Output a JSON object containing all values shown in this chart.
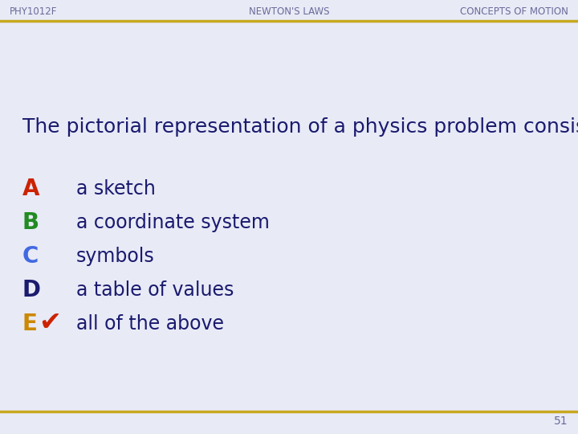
{
  "background_color": "#e8eaf6",
  "header_left": "PHY1012F",
  "header_center": "NEWTON'S LAWS",
  "header_right": "CONCEPTS OF MOTION",
  "header_color": "#6b6b9a",
  "header_bar_color": "#c8a820",
  "footer_bar_color": "#c8a820",
  "footer_number": "51",
  "question": "The pictorial representation of a physics problem consists of",
  "question_color": "#1a1a6e",
  "options": [
    {
      "letter": "A",
      "text": "a sketch",
      "letter_color": "#cc2200"
    },
    {
      "letter": "B",
      "text": "a coordinate system",
      "letter_color": "#228B22"
    },
    {
      "letter": "C",
      "text": "symbols",
      "letter_color": "#4169E1"
    },
    {
      "letter": "D",
      "text": "a table of values",
      "letter_color": "#1a1a6e"
    },
    {
      "letter": "E",
      "text": "all of the above",
      "letter_color": "#cc8800",
      "correct": true
    }
  ],
  "letter_fontsize": 20,
  "text_fontsize": 17,
  "question_fontsize": 18,
  "header_fontsize": 8.5,
  "footer_fontsize": 10,
  "checkmark_color": "#cc2200",
  "checkmark_fontsize": 24
}
